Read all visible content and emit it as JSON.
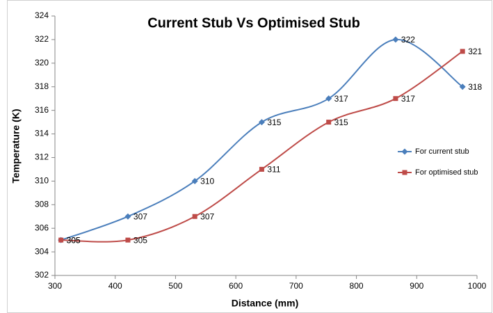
{
  "chart_data": {
    "type": "line",
    "title": "Current Stub Vs Optimised Stub",
    "xlabel": "Distance (mm)",
    "ylabel": "Temperature (K)",
    "x": [
      310,
      421,
      532,
      643,
      754,
      865,
      976
    ],
    "series": [
      {
        "name": "For current stub",
        "color": "#4a7ebb",
        "marker": "diamond",
        "values": [
          305,
          307,
          310,
          315,
          317,
          322,
          318
        ]
      },
      {
        "name": "For optimised stub",
        "color": "#be4b48",
        "marker": "square",
        "values": [
          305,
          305,
          307,
          311,
          315,
          317,
          321
        ]
      }
    ],
    "xlim": [
      300,
      1000
    ],
    "xticks": [
      300,
      400,
      500,
      600,
      700,
      800,
      900,
      1000
    ],
    "ylim": [
      302,
      324
    ],
    "yticks": [
      302,
      304,
      306,
      308,
      310,
      312,
      314,
      316,
      318,
      320,
      322,
      324
    ],
    "grid": false,
    "legend": "right",
    "smooth": true
  }
}
